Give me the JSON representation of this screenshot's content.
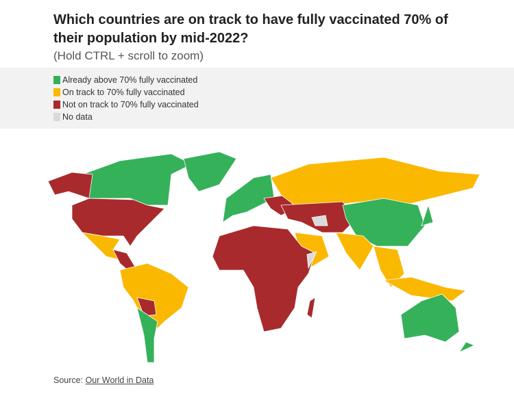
{
  "header": {
    "title": "Which countries are on track to have fully vaccinated 70% of their population by mid-2022?",
    "subtitle": "(Hold CTRL + scroll to zoom)"
  },
  "legend": [
    {
      "label": "Already above 70% fully vaccinated",
      "color": "#35b15a"
    },
    {
      "label": "On track to 70% fully vaccinated",
      "color": "#fbb800"
    },
    {
      "label": "Not on track to 70% fully vaccinated",
      "color": "#a92a2c"
    },
    {
      "label": "No data",
      "color": "#dadada"
    }
  ],
  "source": {
    "prefix": "Source:",
    "link": "Our World in Data"
  }
}
